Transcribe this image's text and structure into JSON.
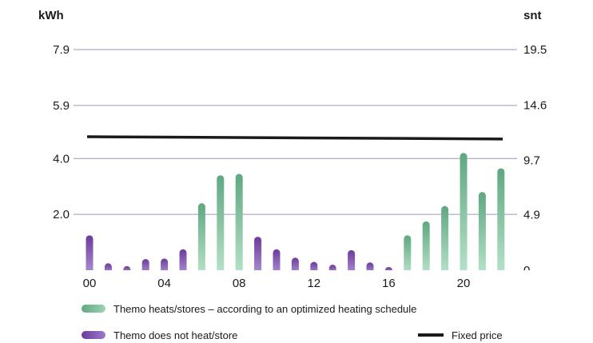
{
  "chart_data": {
    "type": "bar",
    "left_unit": "kWh",
    "right_unit": "snt",
    "left_ticks": [
      "7.9",
      "5.9",
      "4.0",
      "2.0"
    ],
    "left_tick_values": [
      7.9,
      5.9,
      4.0,
      2.0
    ],
    "right_ticks": [
      "19.5",
      "14.6",
      "9.7",
      "4.9",
      "0"
    ],
    "right_tick_values": [
      19.5,
      14.6,
      9.7,
      4.9,
      0
    ],
    "ylim_left": [
      0,
      7.9
    ],
    "ylim_right": [
      0,
      19.5
    ],
    "x_ticks": [
      "00",
      "04",
      "08",
      "12",
      "16",
      "20"
    ],
    "x_tick_hours": [
      0,
      4,
      8,
      12,
      16,
      20
    ],
    "hours": [
      0,
      1,
      2,
      3,
      4,
      5,
      6,
      7,
      8,
      9,
      10,
      11,
      12,
      13,
      14,
      15,
      16,
      17,
      18,
      19,
      20,
      21,
      22
    ],
    "values": [
      1.25,
      0.25,
      0.15,
      0.4,
      0.42,
      0.75,
      2.4,
      3.4,
      3.45,
      1.2,
      0.75,
      0.45,
      0.3,
      0.2,
      0.72,
      0.28,
      0.1,
      1.25,
      1.75,
      2.3,
      4.2,
      2.8,
      3.65
    ],
    "heating": [
      false,
      false,
      false,
      false,
      false,
      false,
      true,
      true,
      true,
      false,
      false,
      false,
      false,
      false,
      false,
      false,
      false,
      true,
      true,
      true,
      true,
      true,
      true
    ],
    "fixed_price": {
      "start": 11.8,
      "end": 11.6,
      "axis": "right"
    },
    "grid": true,
    "legend": [
      {
        "key": "heating",
        "label": "Themo heats/stores – according to an optimized heating schedule"
      },
      {
        "key": "not_heating",
        "label": "Themo does not heat/store"
      },
      {
        "key": "fixed_price",
        "label": "Fixed price"
      }
    ],
    "colors": {
      "heating_top": "#5fa880",
      "heating_bottom": "#b6e2c9",
      "not_heating_top": "#6d3a9c",
      "not_heating_bottom": "#a98fd1",
      "fixed_price": "#1a1a1a",
      "grid": "#9b94c6"
    }
  }
}
